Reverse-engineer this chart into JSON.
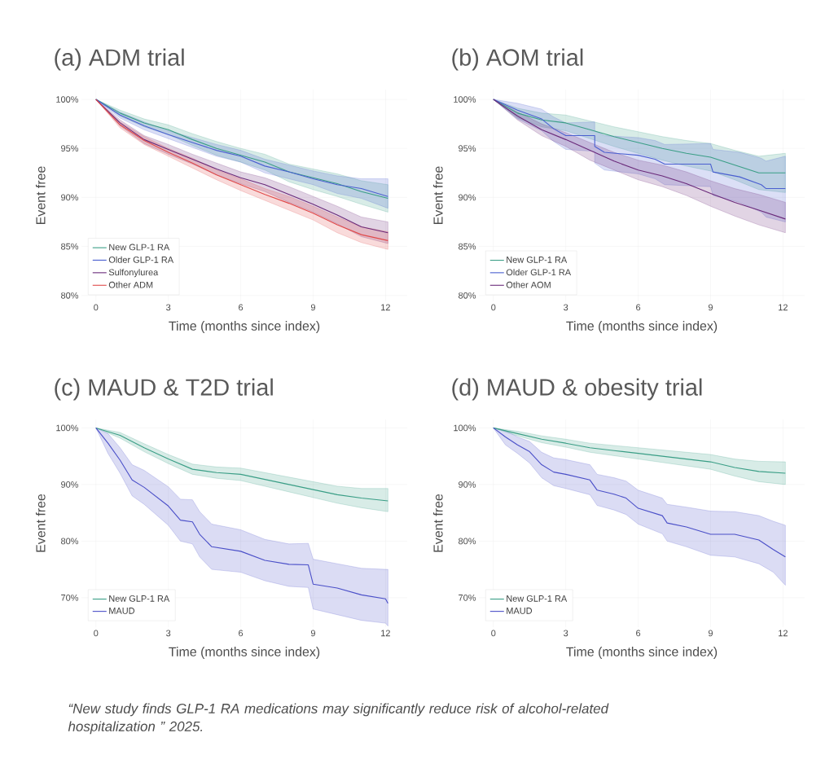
{
  "chart_data": [
    {
      "type": "line",
      "title": "(a) ADM trial",
      "xlabel": "Time (months since index)",
      "ylabel": "Event free",
      "xlim": [
        -0.6,
        12.9
      ],
      "ylim": [
        79.4,
        101
      ],
      "xticks": [
        0,
        3,
        6,
        9,
        12
      ],
      "yticks": [
        {
          "value": 80,
          "label": "80%"
        },
        {
          "value": 85,
          "label": "85%"
        },
        {
          "value": 90,
          "label": "90%"
        },
        {
          "value": 95,
          "label": "95%"
        },
        {
          "value": 100,
          "label": "100%"
        }
      ],
      "grid": true,
      "legend": "bottom left",
      "series": [
        {
          "name": "New GLP-1 RA",
          "color": "#3a9e86",
          "x": [
            0,
            1,
            2,
            3,
            4,
            5,
            6,
            7,
            8,
            9,
            10,
            11,
            12.1
          ],
          "values": [
            100,
            98.6,
            97.6,
            96.9,
            95.9,
            95.0,
            94.3,
            93.6,
            92.6,
            92.0,
            91.4,
            90.6,
            89.9
          ],
          "lower": [
            100,
            98.3,
            97.2,
            96.4,
            95.3,
            94.3,
            93.6,
            92.8,
            91.6,
            90.8,
            90.1,
            89.3,
            88.5
          ],
          "upper": [
            100,
            98.9,
            98.0,
            97.4,
            96.5,
            95.7,
            95.0,
            94.4,
            93.4,
            92.9,
            92.4,
            91.7,
            91.3
          ]
        },
        {
          "name": "Older GLP-1 RA",
          "color": "#4a5fd0",
          "x": [
            0,
            1,
            2,
            3,
            4,
            5,
            6,
            7,
            8,
            9,
            10,
            11,
            12.1
          ],
          "values": [
            100,
            98.4,
            97.3,
            96.4,
            95.6,
            94.8,
            94.2,
            93.2,
            92.6,
            91.9,
            91.3,
            90.9,
            90.1
          ],
          "lower": [
            100,
            98.1,
            96.9,
            96.0,
            95.1,
            94.2,
            93.6,
            92.5,
            91.9,
            91.3,
            90.4,
            89.9,
            88.9
          ],
          "upper": [
            100,
            98.7,
            97.7,
            96.8,
            96.1,
            95.4,
            94.8,
            93.9,
            93.3,
            92.7,
            92.2,
            91.9,
            91.9
          ]
        },
        {
          "name": "Sulfonylurea",
          "color": "#6a2a7a",
          "x": [
            0,
            1,
            2,
            3,
            4,
            5,
            6,
            7,
            8,
            9,
            10,
            11,
            12.1
          ],
          "values": [
            100,
            97.6,
            95.9,
            94.9,
            93.9,
            92.9,
            92.0,
            91.3,
            90.3,
            89.3,
            88.2,
            87.0,
            86.4
          ],
          "lower": [
            100,
            97.3,
            95.5,
            94.4,
            93.4,
            92.3,
            91.4,
            90.6,
            89.5,
            88.5,
            87.3,
            86.0,
            85.3
          ],
          "upper": [
            100,
            97.9,
            96.3,
            95.4,
            94.4,
            93.5,
            92.6,
            92.0,
            91.1,
            90.1,
            89.1,
            88.0,
            87.5
          ]
        },
        {
          "name": "Other ADM",
          "color": "#e04a4a",
          "x": [
            0,
            1,
            2,
            3,
            4,
            5,
            6,
            7,
            8,
            9,
            10,
            11,
            12.1
          ],
          "values": [
            100,
            97.4,
            95.8,
            94.6,
            93.5,
            92.3,
            91.3,
            90.3,
            89.4,
            88.4,
            87.2,
            86.2,
            85.6
          ],
          "lower": [
            100,
            97.1,
            95.4,
            94.2,
            93.0,
            91.8,
            90.7,
            89.7,
            88.7,
            87.7,
            86.4,
            85.4,
            84.7
          ],
          "upper": [
            100,
            97.7,
            96.2,
            95.0,
            94.0,
            92.8,
            91.9,
            90.9,
            90.1,
            89.1,
            88.0,
            87.0,
            86.5
          ]
        }
      ]
    },
    {
      "type": "line",
      "title": "(b) AOM trial",
      "xlabel": "Time (months since index)",
      "ylabel": "Event free",
      "xlim": [
        -0.6,
        12.9
      ],
      "ylim": [
        79.4,
        101
      ],
      "xticks": [
        0,
        3,
        6,
        9,
        12
      ],
      "yticks": [
        {
          "value": 80,
          "label": "80%"
        },
        {
          "value": 85,
          "label": "85%"
        },
        {
          "value": 90,
          "label": "90%"
        },
        {
          "value": 95,
          "label": "95%"
        },
        {
          "value": 100,
          "label": "100%"
        }
      ],
      "grid": true,
      "legend": "bottom left",
      "series": [
        {
          "name": "New GLP-1 RA",
          "color": "#3a9e86",
          "x": [
            0,
            1,
            2,
            3,
            4,
            5,
            6,
            7,
            8,
            9,
            10,
            11,
            12.1
          ],
          "values": [
            100,
            98.6,
            97.9,
            97.6,
            96.9,
            96.2,
            95.6,
            95.0,
            94.5,
            94.1,
            93.3,
            92.5,
            92.5
          ],
          "lower": [
            100,
            98.1,
            97.2,
            96.8,
            96.0,
            95.2,
            94.5,
            93.8,
            93.2,
            92.7,
            91.8,
            90.8,
            90.5
          ],
          "upper": [
            100,
            99.1,
            98.6,
            98.4,
            97.8,
            97.2,
            96.7,
            96.2,
            95.8,
            95.5,
            94.8,
            94.2,
            94.5
          ]
        },
        {
          "name": "Older GLP-1 RA",
          "color": "#4a5fd0",
          "x": [
            0,
            1,
            2,
            2.5,
            3,
            4.2,
            4.2,
            4.6,
            6,
            6.7,
            7.1,
            9,
            9.1,
            10.2,
            11.1,
            11.3,
            12.1
          ],
          "values": [
            100,
            98.9,
            98.0,
            97.0,
            96.3,
            96.3,
            95.2,
            94.6,
            94.3,
            93.9,
            93.4,
            93.4,
            92.6,
            92.1,
            91.3,
            90.9,
            90.9
          ],
          "lower": [
            100,
            98.0,
            96.8,
            95.7,
            94.9,
            94.7,
            93.5,
            92.8,
            92.4,
            91.9,
            91.3,
            91.1,
            90.2,
            89.5,
            88.5,
            88.0,
            87.5
          ],
          "upper": [
            100,
            99.6,
            99.0,
            98.2,
            97.6,
            97.7,
            96.8,
            96.3,
            96.1,
            95.8,
            95.4,
            95.5,
            94.9,
            94.6,
            94.0,
            93.7,
            94.2
          ]
        },
        {
          "name": "Other AOM",
          "color": "#6a2a7a",
          "x": [
            0,
            1,
            2,
            3,
            4,
            5,
            6,
            7,
            8,
            9,
            10,
            11,
            12.1
          ],
          "values": [
            100,
            98.3,
            96.9,
            95.9,
            94.8,
            93.7,
            92.8,
            92.2,
            91.4,
            90.4,
            89.5,
            88.7,
            87.8
          ],
          "lower": [
            100,
            97.9,
            96.3,
            95.2,
            93.8,
            92.8,
            91.8,
            91.1,
            90.2,
            89.1,
            88.1,
            87.2,
            86.4
          ],
          "upper": [
            100,
            98.7,
            97.5,
            96.6,
            95.6,
            94.6,
            93.8,
            93.3,
            92.6,
            91.7,
            90.9,
            90.3,
            89.5
          ]
        }
      ]
    },
    {
      "type": "line",
      "title": "(c) MAUD & T2D trial",
      "xlabel": "Time (months since index)",
      "ylabel": "Event free",
      "xlim": [
        -0.6,
        12.9
      ],
      "ylim": [
        64.8,
        101.5
      ],
      "xticks": [
        0,
        3,
        6,
        9,
        12
      ],
      "yticks": [
        {
          "value": 70,
          "label": "70%"
        },
        {
          "value": 80,
          "label": "80%"
        },
        {
          "value": 90,
          "label": "90%"
        },
        {
          "value": 100,
          "label": "100%"
        }
      ],
      "grid": true,
      "legend": "bottom left",
      "series": [
        {
          "name": "New GLP-1 RA",
          "color": "#3a9e86",
          "x": [
            0,
            1,
            2,
            3,
            4,
            5,
            6,
            7,
            8,
            9,
            10,
            11,
            12.1
          ],
          "values": [
            100,
            98.7,
            96.5,
            94.5,
            92.7,
            92.1,
            91.8,
            90.9,
            90.0,
            89.1,
            88.2,
            87.6,
            87.1
          ],
          "lower": [
            100,
            98.2,
            95.8,
            93.7,
            91.8,
            91.1,
            90.7,
            89.7,
            88.7,
            87.7,
            86.7,
            85.9,
            85.2
          ],
          "upper": [
            100,
            99.2,
            97.2,
            95.3,
            93.6,
            93.1,
            92.9,
            92.1,
            91.3,
            90.5,
            89.7,
            89.3,
            89.3
          ]
        },
        {
          "name": "MAUD",
          "color": "#4a4fc8",
          "x": [
            0,
            0.5,
            1,
            1.5,
            2,
            3,
            3.5,
            4,
            4.3,
            4.8,
            6,
            7,
            8,
            8.8,
            9,
            10,
            11,
            12,
            12.1
          ],
          "values": [
            100,
            97.3,
            94.3,
            90.8,
            89.5,
            86.2,
            83.7,
            83.4,
            81.2,
            79.0,
            78.2,
            76.6,
            75.9,
            75.8,
            72.4,
            71.7,
            70.5,
            69.8,
            69.0
          ],
          "lower": [
            100,
            95.5,
            92.0,
            88.0,
            86.5,
            82.8,
            80.0,
            79.5,
            77.2,
            75.0,
            74.5,
            73.0,
            72.0,
            71.8,
            68.0,
            67.0,
            66.0,
            65.5,
            65.0
          ],
          "upper": [
            100,
            99.0,
            96.5,
            93.5,
            92.5,
            89.6,
            87.4,
            87.3,
            85.2,
            83.0,
            82.0,
            80.3,
            79.5,
            79.6,
            76.8,
            76.0,
            75.2,
            75.0,
            75.0
          ]
        }
      ]
    },
    {
      "type": "line",
      "title": "(d) MAUD & obesity trial",
      "xlabel": "Time (months since index)",
      "ylabel": "Event free",
      "xlim": [
        -0.6,
        12.9
      ],
      "ylim": [
        64.8,
        101.5
      ],
      "xticks": [
        0,
        3,
        6,
        9,
        12
      ],
      "yticks": [
        {
          "value": 70,
          "label": "70%"
        },
        {
          "value": 80,
          "label": "80%"
        },
        {
          "value": 90,
          "label": "90%"
        },
        {
          "value": 100,
          "label": "100%"
        }
      ],
      "grid": true,
      "legend": "bottom left",
      "annotations": [
        "“New study finds GLP-1 RA medications may significantly reduce risk of alcohol-related hospitalization ” 2025."
      ],
      "series": [
        {
          "name": "New GLP-1 RA",
          "color": "#3a9e86",
          "x": [
            0,
            1,
            2,
            3,
            4,
            5,
            6,
            7,
            8,
            9,
            10,
            11,
            12.1
          ],
          "values": [
            100,
            99.0,
            98.0,
            97.3,
            96.5,
            96.0,
            95.5,
            95.0,
            94.5,
            94.0,
            93.0,
            92.3,
            92.0
          ],
          "lower": [
            100,
            98.6,
            97.4,
            96.6,
            95.7,
            95.1,
            94.5,
            93.9,
            93.3,
            92.7,
            91.5,
            90.5,
            90.0
          ],
          "upper": [
            100,
            99.4,
            98.6,
            98.0,
            97.3,
            96.9,
            96.5,
            96.1,
            95.7,
            95.3,
            94.5,
            94.1,
            94.0
          ]
        },
        {
          "name": "MAUD",
          "color": "#4a4fc8",
          "x": [
            0,
            0.5,
            1,
            1.5,
            2,
            2.5,
            3,
            4,
            4.3,
            5,
            5.5,
            6,
            7,
            7.2,
            8,
            9,
            10,
            11,
            11.6,
            12.1
          ],
          "values": [
            100,
            98.4,
            97.0,
            95.8,
            93.5,
            92.2,
            91.8,
            90.8,
            89.0,
            88.3,
            87.6,
            85.8,
            84.5,
            83.2,
            82.5,
            81.2,
            81.2,
            80.2,
            78.5,
            77.2
          ],
          "lower": [
            100,
            97.0,
            95.5,
            93.8,
            91.2,
            89.8,
            89.3,
            88.2,
            86.3,
            85.5,
            84.7,
            83.0,
            81.3,
            80.0,
            79.0,
            77.5,
            77.2,
            76.0,
            74.5,
            72.2
          ],
          "upper": [
            100,
            99.5,
            98.4,
            97.6,
            95.7,
            94.7,
            94.4,
            93.5,
            91.8,
            91.2,
            90.6,
            89.0,
            87.6,
            86.5,
            86.0,
            85.3,
            85.2,
            84.5,
            83.5,
            82.8
          ]
        }
      ]
    }
  ]
}
